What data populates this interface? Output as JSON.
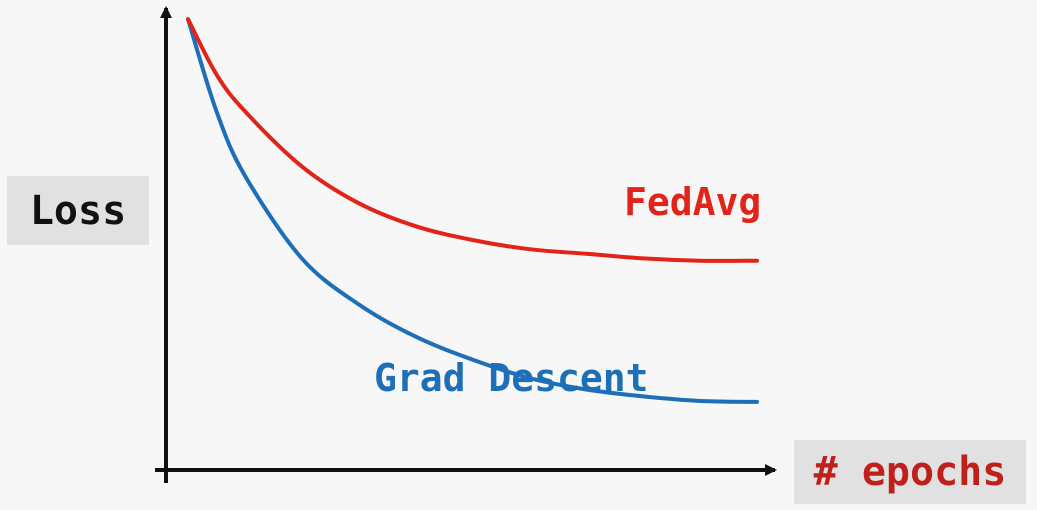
{
  "chart_data": {
    "type": "line",
    "xlabel": "# epochs",
    "ylabel": "Loss",
    "xlim": [
      0,
      1
    ],
    "ylim": [
      0,
      1
    ],
    "series": [
      {
        "name": "FedAvg",
        "color": "#e2231a",
        "x": [
          0,
          0.05,
          0.1,
          0.2,
          0.3,
          0.4,
          0.5,
          0.6,
          0.7,
          0.8,
          0.9,
          1.0
        ],
        "y": [
          0.98,
          0.86,
          0.78,
          0.66,
          0.58,
          0.53,
          0.5,
          0.48,
          0.47,
          0.46,
          0.455,
          0.455
        ]
      },
      {
        "name": "Grad Descent",
        "color": "#1d6fb8",
        "x": [
          0,
          0.05,
          0.1,
          0.2,
          0.3,
          0.4,
          0.5,
          0.6,
          0.7,
          0.8,
          0.9,
          1.0
        ],
        "y": [
          0.98,
          0.78,
          0.64,
          0.46,
          0.36,
          0.29,
          0.24,
          0.2,
          0.175,
          0.16,
          0.15,
          0.148
        ]
      }
    ],
    "arrows": true,
    "grid": false
  },
  "labels": {
    "y_axis": "Loss",
    "x_axis": "# epochs",
    "fedavg": "FedAvg",
    "grad": "Grad Descent"
  },
  "colors": {
    "fedavg": "#e2231a",
    "grad": "#1d6fb8",
    "xlabel": "#c0201c",
    "ylabel": "#111111"
  }
}
